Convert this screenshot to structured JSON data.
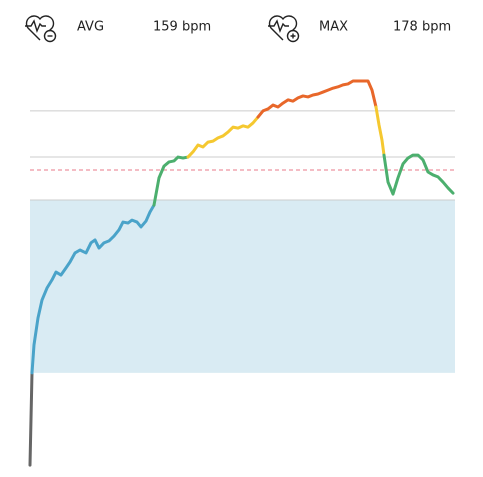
{
  "header": {
    "avg_label": "AVG",
    "avg_value": "159 bpm",
    "max_label": "MAX",
    "max_value": "178 bpm"
  },
  "chart_data": {
    "type": "line",
    "xlim": [
      0,
      425
    ],
    "ylim": [
      60,
      190
    ],
    "zone": {
      "range": [
        88.2,
        141.4
      ],
      "color": "#d9ebf3"
    },
    "reference_lines": [
      {
        "value": 168.8,
        "style": "solid",
        "color": "#cccccc"
      },
      {
        "value": 154.6,
        "style": "solid",
        "color": "#cccccc"
      },
      {
        "value": 150.6,
        "style": "dashed",
        "color": "#e8798a"
      },
      {
        "value": 141.4,
        "style": "solid",
        "color": "#cccccc"
      }
    ],
    "series": [
      {
        "color": "#666666",
        "x": [
          0,
          2
        ],
        "values": [
          59.8,
          88.2
        ]
      },
      {
        "color": "#4aa3c9",
        "x": [
          2,
          4,
          8,
          12,
          17,
          22,
          26,
          31,
          36,
          40,
          45,
          50,
          56,
          61,
          65,
          69,
          74,
          79,
          84,
          89,
          93,
          98,
          102,
          107,
          111,
          116,
          120,
          124
        ],
        "values": [
          88.2,
          96.8,
          105.1,
          110.6,
          114.3,
          116.8,
          119.2,
          118.3,
          120.5,
          122.3,
          125.1,
          126,
          125.1,
          128.2,
          129.1,
          126.6,
          128.2,
          128.8,
          130.3,
          132.2,
          134.6,
          134.3,
          135.2,
          134.6,
          133.1,
          134.9,
          137.7,
          139.8
        ]
      },
      {
        "color": "#4caf6e",
        "x": [
          124,
          129,
          134,
          139,
          144,
          148,
          153,
          158
        ],
        "values": [
          139.8,
          148.2,
          151.8,
          153.1,
          153.4,
          154.6,
          154.3,
          154.6
        ]
      },
      {
        "color": "#f5c830",
        "x": [
          158,
          163,
          168,
          173,
          178,
          183,
          188,
          193,
          198,
          203,
          208,
          213,
          218,
          223,
          228
        ],
        "values": [
          154.6,
          156.2,
          158.3,
          157.7,
          159.2,
          159.5,
          160.5,
          161.1,
          162.3,
          163.8,
          163.5,
          164.2,
          163.8,
          165.1,
          166.9
        ]
      },
      {
        "color": "#e8672a",
        "x": [
          228,
          233,
          238,
          243,
          248,
          253,
          258,
          263,
          268,
          273,
          278,
          283,
          288,
          293,
          298,
          303,
          308,
          313,
          318,
          323,
          328,
          333,
          338,
          342,
          346
        ],
        "values": [
          166.9,
          168.8,
          169.4,
          170.6,
          170,
          171.2,
          172.2,
          171.8,
          172.8,
          173.4,
          173.1,
          173.7,
          174,
          174.6,
          175.2,
          175.8,
          176.2,
          176.8,
          177.1,
          178,
          178,
          178,
          178,
          175.2,
          170
        ]
      },
      {
        "color": "#f5c830",
        "x": [
          346,
          349,
          352,
          354
        ],
        "values": [
          170,
          164.5,
          159.8,
          155.2
        ]
      },
      {
        "color": "#4caf6e",
        "x": [
          354,
          358,
          363,
          368,
          373,
          378,
          383,
          388,
          393,
          398,
          403,
          408,
          413,
          418,
          423
        ],
        "values": [
          155.2,
          146.9,
          143.2,
          148.2,
          152.5,
          154.3,
          155.2,
          155.2,
          153.7,
          150,
          149.1,
          148.5,
          146.9,
          145.1,
          143.5
        ]
      }
    ]
  }
}
